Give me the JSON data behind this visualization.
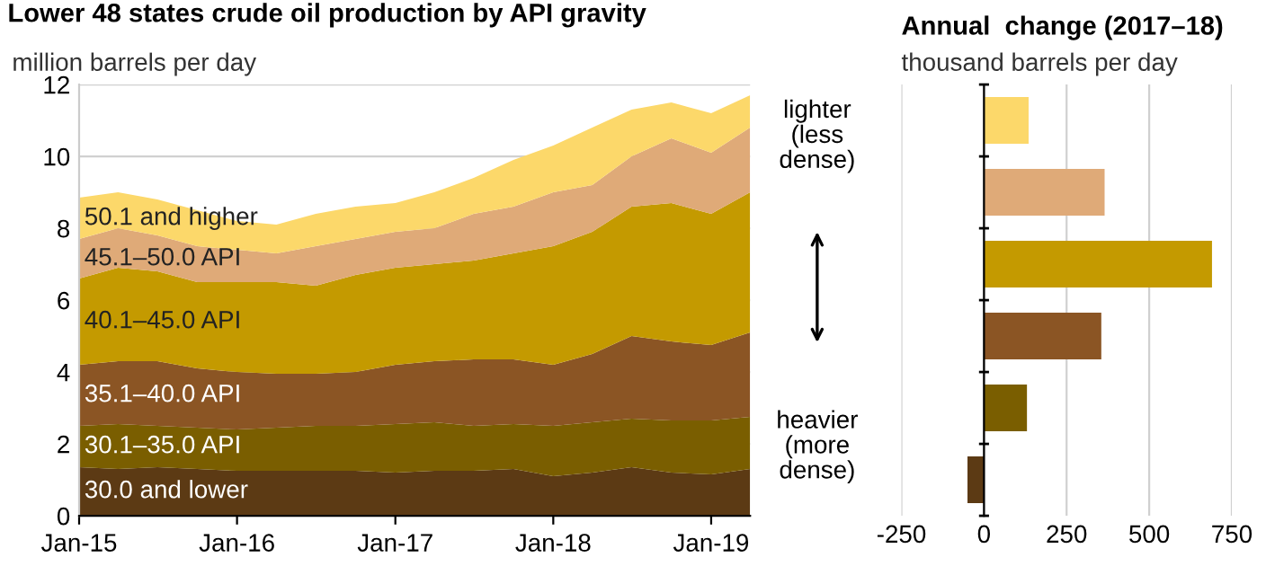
{
  "chart_data": [
    {
      "type": "area",
      "stacked": true,
      "title": "Lower 48 states crude oil production by API gravity",
      "ylabel": "million barrels per day",
      "x": [
        "2015-01",
        "2015-04",
        "2015-07",
        "2015-10",
        "2016-01",
        "2016-04",
        "2016-07",
        "2016-10",
        "2017-01",
        "2017-04",
        "2017-07",
        "2017-10",
        "2018-01",
        "2018-04",
        "2018-07",
        "2018-10",
        "2019-01",
        "2019-04"
      ],
      "series": [
        {
          "name": "30.0 and lower",
          "color": "#5c3a14",
          "values": [
            1.35,
            1.3,
            1.35,
            1.3,
            1.25,
            1.25,
            1.25,
            1.25,
            1.2,
            1.25,
            1.25,
            1.3,
            1.1,
            1.2,
            1.35,
            1.2,
            1.15,
            1.3
          ]
        },
        {
          "name": "30.1–35.0 API",
          "color": "#7a5e00",
          "values": [
            1.15,
            1.25,
            1.15,
            1.15,
            1.15,
            1.2,
            1.25,
            1.25,
            1.35,
            1.35,
            1.25,
            1.25,
            1.4,
            1.4,
            1.35,
            1.45,
            1.5,
            1.45
          ]
        },
        {
          "name": "35.1–40.0 API",
          "color": "#8b5524",
          "values": [
            1.7,
            1.75,
            1.8,
            1.65,
            1.6,
            1.5,
            1.45,
            1.5,
            1.65,
            1.7,
            1.85,
            1.8,
            1.7,
            1.9,
            2.3,
            2.2,
            2.1,
            2.35
          ]
        },
        {
          "name": "40.1–45.0 API",
          "color": "#c49a00",
          "values": [
            2.4,
            2.6,
            2.5,
            2.4,
            2.5,
            2.55,
            2.45,
            2.7,
            2.7,
            2.7,
            2.75,
            2.95,
            3.3,
            3.4,
            3.6,
            3.85,
            3.65,
            3.9
          ]
        },
        {
          "name": "45.1–50.0 API",
          "color": "#dfaa78",
          "values": [
            1.1,
            1.1,
            1.0,
            1.0,
            0.9,
            0.8,
            1.1,
            1.0,
            1.0,
            1.0,
            1.3,
            1.3,
            1.5,
            1.3,
            1.4,
            1.8,
            1.7,
            1.8
          ]
        },
        {
          "name": "50.1 and higher",
          "color": "#fcd86a",
          "values": [
            1.15,
            1.0,
            1.0,
            1.0,
            0.8,
            0.8,
            0.9,
            0.9,
            0.8,
            1.0,
            1.0,
            1.3,
            1.3,
            1.6,
            1.3,
            1.0,
            1.1,
            0.9
          ]
        }
      ],
      "xlim": [
        "2015-01",
        "2019-04"
      ],
      "xticks": [
        {
          "value": "2015-01",
          "label": "Jan-15"
        },
        {
          "value": "2016-01",
          "label": "Jan-16"
        },
        {
          "value": "2017-01",
          "label": "Jan-17"
        },
        {
          "value": "2018-01",
          "label": "Jan-18"
        },
        {
          "value": "2019-01",
          "label": "Jan-19"
        }
      ],
      "ylim": [
        0,
        12
      ],
      "yticks": [
        0,
        2,
        4,
        6,
        8,
        10,
        12
      ],
      "grid": "y",
      "legend": false,
      "annotations": [
        "lighter\n(less\ndense)",
        "heavier\n(more\ndense)"
      ]
    },
    {
      "type": "bar",
      "orientation": "horizontal",
      "title": "Annual  change (2017–18)",
      "xlabel": "thousand barrels per day",
      "categories": [
        null,
        null,
        null,
        null,
        null,
        null
      ],
      "values": [
        135,
        365,
        690,
        355,
        130,
        -50
      ],
      "colors": [
        "#fcd86a",
        "#dfaa78",
        "#c49a00",
        "#8b5524",
        "#7a5e00",
        "#5c3a14"
      ],
      "xlim": [
        -250,
        750
      ],
      "xticks": [
        -250,
        0,
        250,
        500,
        750
      ],
      "grid": "x",
      "legend": false
    }
  ]
}
